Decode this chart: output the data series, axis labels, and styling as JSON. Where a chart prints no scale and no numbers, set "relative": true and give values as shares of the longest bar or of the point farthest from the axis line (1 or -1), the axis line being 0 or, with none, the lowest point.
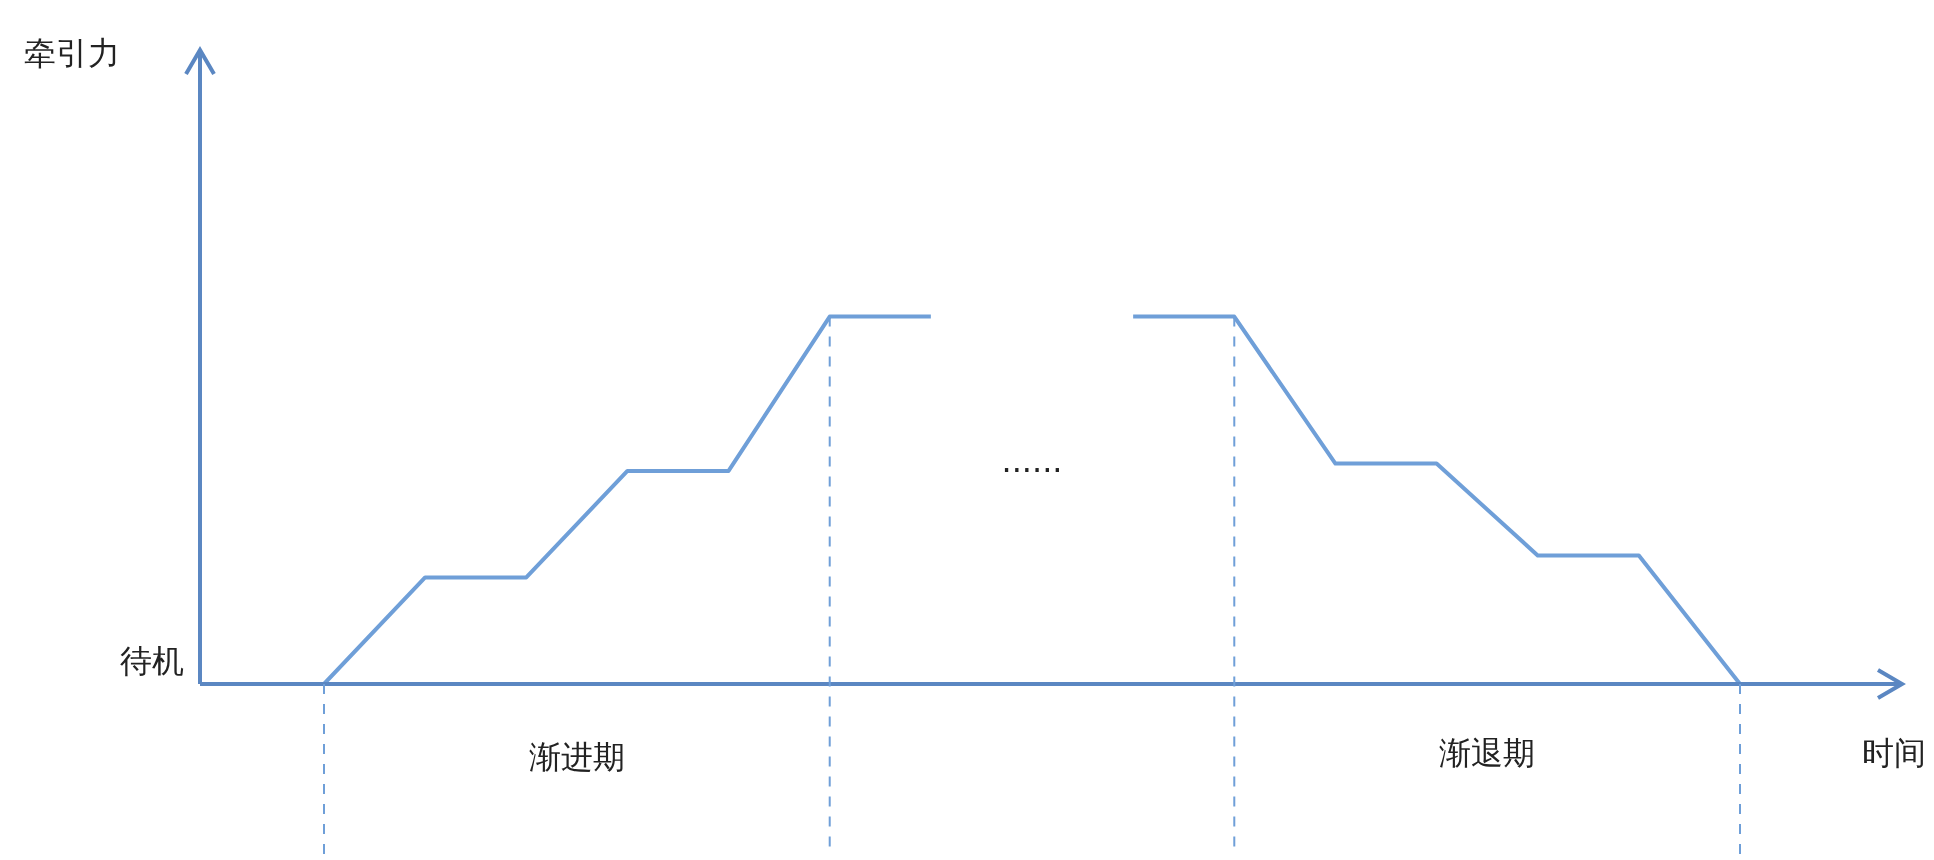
{
  "chart_data": {
    "type": "line",
    "relative": true,
    "xlabel": "时间",
    "categories": [
      null,
      null,
      null,
      null,
      null,
      null,
      null,
      null,
      null,
      null,
      null,
      null,
      null,
      null,
      null
    ],
    "legend": false,
    "marker": "none",
    "line_style": "solid",
    "series": [
      {
        "color": "#6f9fd8",
        "values": [
          0,
          0.29,
          0.29,
          0.58,
          0.58,
          1,
          1,
          null,
          null,
          null,
          null,
          null,
          null,
          null,
          null
        ]
      },
      {
        "color": "#6f9fd8",
        "values": [
          null,
          null,
          null,
          null,
          null,
          null,
          null,
          null,
          1,
          1,
          0.6,
          0.6,
          0.35,
          0.35,
          0
        ]
      }
    ],
    "annotations": [
      "牵引力",
      "待机",
      "渐进期",
      "......",
      "渐退期"
    ]
  }
}
